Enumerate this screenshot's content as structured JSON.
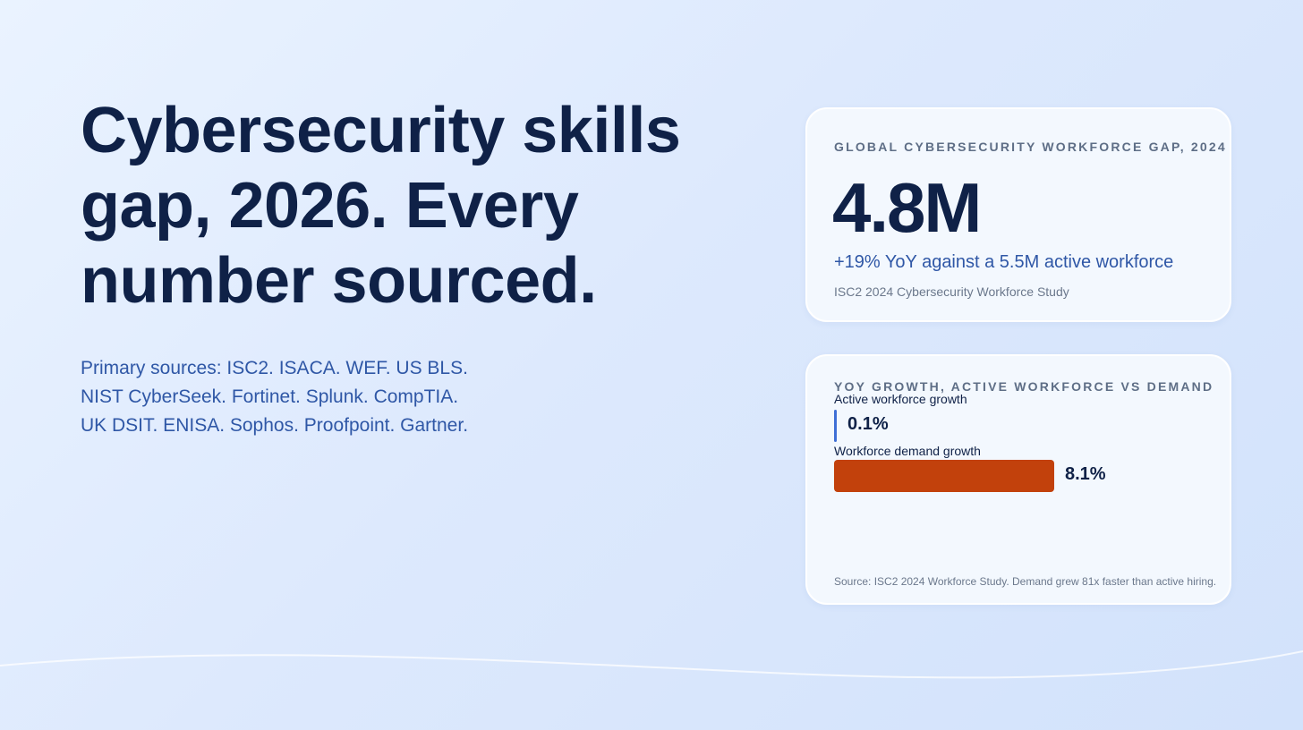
{
  "headline": {
    "lines": [
      "Cybersecurity skills",
      "gap, 2026. Every",
      "number sourced."
    ]
  },
  "sources": {
    "lines": [
      "Primary sources: ISC2. ISACA. WEF. US BLS.",
      "NIST CyberSeek. Fortinet. Splunk. CompTIA.",
      "UK DSIT. ENISA. Sophos. Proofpoint. Gartner."
    ]
  },
  "gap_card": {
    "kicker": "GLOBAL CYBERSECURITY WORKFORCE GAP, 2024",
    "value": "4.8M",
    "delta": "+19% YoY against a 5.5M active workforce",
    "source": "ISC2 2024 Cybersecurity Workforce Study"
  },
  "growth_card": {
    "kicker": "YOY GROWTH, ACTIVE WORKFORCE VS DEMAND",
    "footnote": "Source: ISC2 2024 Workforce Study. Demand grew 81x faster than active hiring."
  },
  "chart_data": {
    "type": "bar",
    "title": "YOY GROWTH, ACTIVE WORKFORCE VS DEMAND",
    "categories": [
      "Active workforce growth",
      "Workforce demand growth"
    ],
    "values": [
      0.1,
      8.1
    ],
    "value_labels": [
      "0.1%",
      "8.1%"
    ],
    "unit": "%",
    "xlim": [
      0,
      8.1
    ],
    "colors": [
      "#3f6fd6",
      "#c2410c"
    ],
    "orientation": "horizontal"
  }
}
